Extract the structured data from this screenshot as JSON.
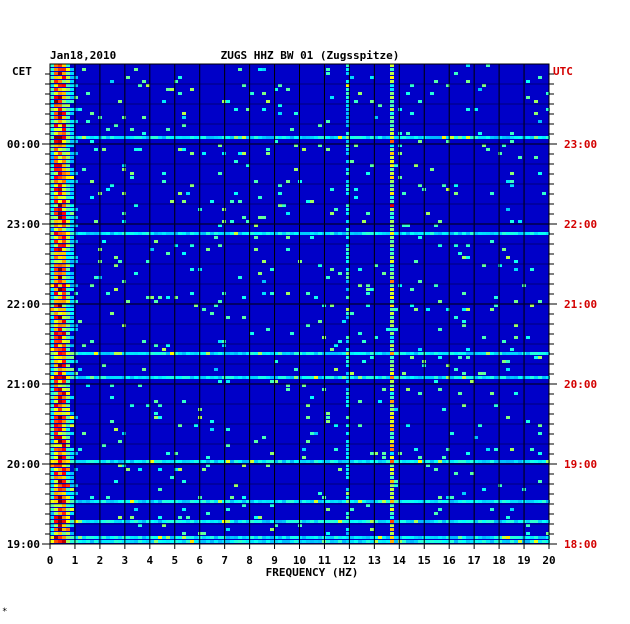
{
  "chart_data": {
    "type": "heatmap",
    "title": "ZUGS HHZ BW 01 (Zugsspitze)",
    "date": "Jan18,2010",
    "xlabel": "FREQUENCY (HZ)",
    "left_axis_label": "CET",
    "right_axis_label": "UTC",
    "xlim": [
      0,
      20
    ],
    "x_ticks": [
      "0",
      "1",
      "2",
      "3",
      "4",
      "5",
      "6",
      "7",
      "8",
      "9",
      "10",
      "11",
      "12",
      "13",
      "14",
      "15",
      "16",
      "17",
      "18",
      "19",
      "20"
    ],
    "left_ticks": [
      "00:00",
      "23:00",
      "22:00",
      "21:00",
      "20:00",
      "19:00"
    ],
    "right_ticks": [
      "23:00",
      "22:00",
      "21:00",
      "20:00",
      "19:00",
      "18:00"
    ],
    "grid": true,
    "colors": {
      "background": "#0000c8",
      "low": "#0a2ae0",
      "mid": "#20c8e8",
      "high": "#ffff00",
      "peak": "#d01010",
      "utc_label": "#d40000"
    },
    "features": [
      {
        "description": "strong low-frequency energy",
        "freq_range_hz": [
          0.1,
          0.8
        ]
      },
      {
        "description": "persistent narrow spectral line",
        "freq_hz": 13.7
      },
      {
        "description": "weaker spectral line",
        "freq_hz": 11.9
      }
    ]
  },
  "footer_mark": "*"
}
